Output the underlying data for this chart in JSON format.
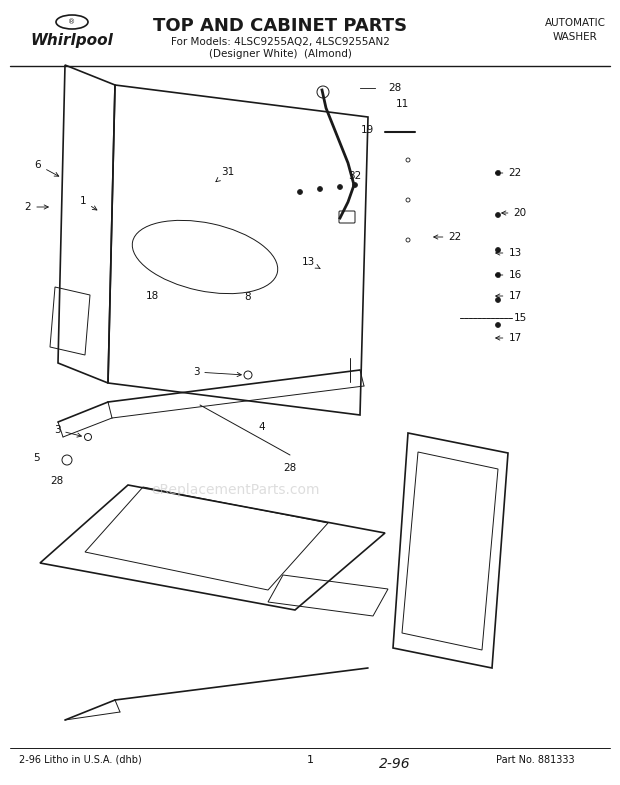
{
  "title": "TOP AND CABINET PARTS",
  "subtitle_line1": "For Models: 4LSC9255AQ2, 4LSC9255AN2",
  "subtitle_line2": "(Designer White)  (Almond)",
  "brand": "Whirlpool",
  "top_right": "AUTOMATIC\nWASHER",
  "bottom_left": "2-96 Litho in U.S.A. (dhb)",
  "bottom_center": "1",
  "bottom_right": "Part No. 881333",
  "watermark": "eReplacementParts.com",
  "bg_color": "#ffffff",
  "line_color": "#1a1a1a",
  "label_color": "#111111",
  "figsize": [
    6.2,
    7.85
  ],
  "dpi": 100
}
